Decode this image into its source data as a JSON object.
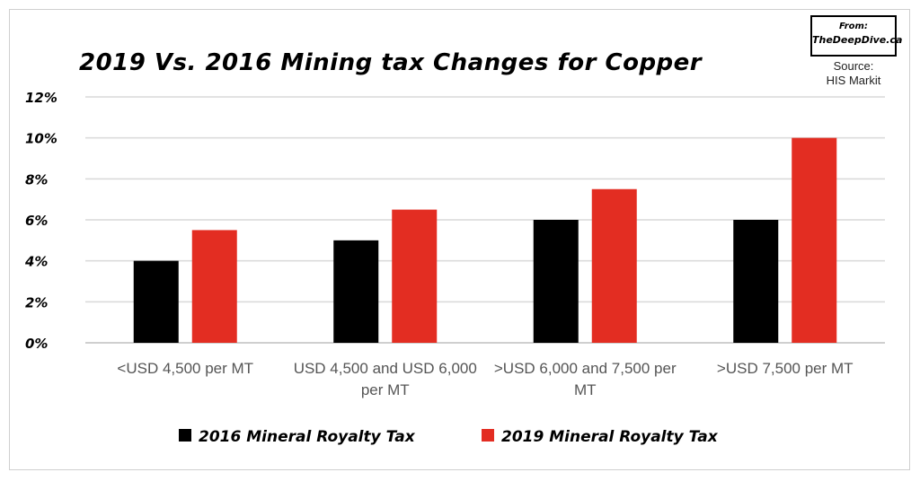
{
  "badge": {
    "from": "From:",
    "site": "TheDeepDive.ca"
  },
  "source": {
    "line1": "Source:",
    "line2": "HIS Markit"
  },
  "chart_data": {
    "type": "bar",
    "title": "2019 Vs. 2016 Mining tax Changes for Copper",
    "categories": [
      [
        "<USD 4,500 per MT"
      ],
      [
        "USD 4,500 and USD 6,000",
        "per MT"
      ],
      [
        ">USD 6,000 and 7,500 per",
        "MT"
      ],
      [
        ">USD 7,500 per MT"
      ]
    ],
    "series": [
      {
        "name": "2016 Mineral Royalty Tax",
        "color": "#000000",
        "values": [
          4,
          5,
          6,
          6
        ]
      },
      {
        "name": "2019 Mineral Royalty Tax",
        "color": "#e32d22",
        "values": [
          5.5,
          6.5,
          7.5,
          10
        ]
      }
    ],
    "ylim": [
      0,
      12
    ],
    "yticks": [
      0,
      2,
      4,
      6,
      8,
      10,
      12
    ],
    "ytick_labels": [
      "0%",
      "2%",
      "4%",
      "6%",
      "8%",
      "10%",
      "12%"
    ],
    "grid": true,
    "legend": "bottom"
  }
}
